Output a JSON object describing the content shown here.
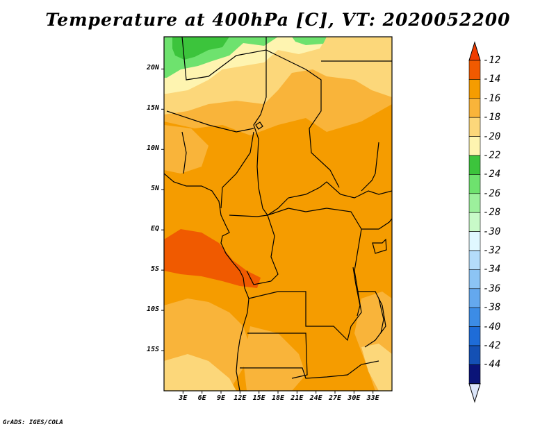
{
  "title": "Temperature at 400hPa [C], VT: 2020052200",
  "credit": "GrADS: IGES/COLA",
  "map": {
    "lon_range": [
      0,
      36
    ],
    "lat_range": [
      -20,
      24
    ],
    "lat_ticks": [
      {
        "value": 20,
        "label": "20N"
      },
      {
        "value": 15,
        "label": "15N"
      },
      {
        "value": 10,
        "label": "10N"
      },
      {
        "value": 5,
        "label": "5N"
      },
      {
        "value": 0,
        "label": "EQ"
      },
      {
        "value": -5,
        "label": "5S"
      },
      {
        "value": -10,
        "label": "10S"
      },
      {
        "value": -15,
        "label": "15S"
      }
    ],
    "lon_ticks": [
      {
        "value": 3,
        "label": "3E"
      },
      {
        "value": 6,
        "label": "6E"
      },
      {
        "value": 9,
        "label": "9E"
      },
      {
        "value": 12,
        "label": "12E"
      },
      {
        "value": 15,
        "label": "15E"
      },
      {
        "value": 18,
        "label": "18E"
      },
      {
        "value": 21,
        "label": "21E"
      },
      {
        "value": 24,
        "label": "24E"
      },
      {
        "value": 27,
        "label": "27E"
      },
      {
        "value": 30,
        "label": "30E"
      },
      {
        "value": 33,
        "label": "33E"
      }
    ]
  },
  "colorbar": {
    "levels": [
      {
        "label": "-12",
        "color": "#f05a00"
      },
      {
        "label": "-14",
        "color": "#f59c00"
      },
      {
        "label": "-16",
        "color": "#f9b43a"
      },
      {
        "label": "-18",
        "color": "#fcd77a"
      },
      {
        "label": "-20",
        "color": "#fef4b0"
      },
      {
        "label": "-22",
        "color": "#3cc43c"
      },
      {
        "label": "-24",
        "color": "#6ee26e"
      },
      {
        "label": "-26",
        "color": "#9cf09c"
      },
      {
        "label": "-28",
        "color": "#c8fac8"
      },
      {
        "label": "-30",
        "color": "#e0f8ff"
      },
      {
        "label": "-32",
        "color": "#b4dcfa"
      },
      {
        "label": "-34",
        "color": "#8cc4f4"
      },
      {
        "label": "-36",
        "color": "#64a8ee"
      },
      {
        "label": "-38",
        "color": "#3c8ce6"
      },
      {
        "label": "-40",
        "color": "#1e6cd8"
      },
      {
        "label": "-42",
        "color": "#1450b4"
      },
      {
        "label": "-44",
        "color": "#0a1478"
      }
    ],
    "top_triangle_color": "#f03c00",
    "bottom_triangle_color": "#dce6fa"
  }
}
